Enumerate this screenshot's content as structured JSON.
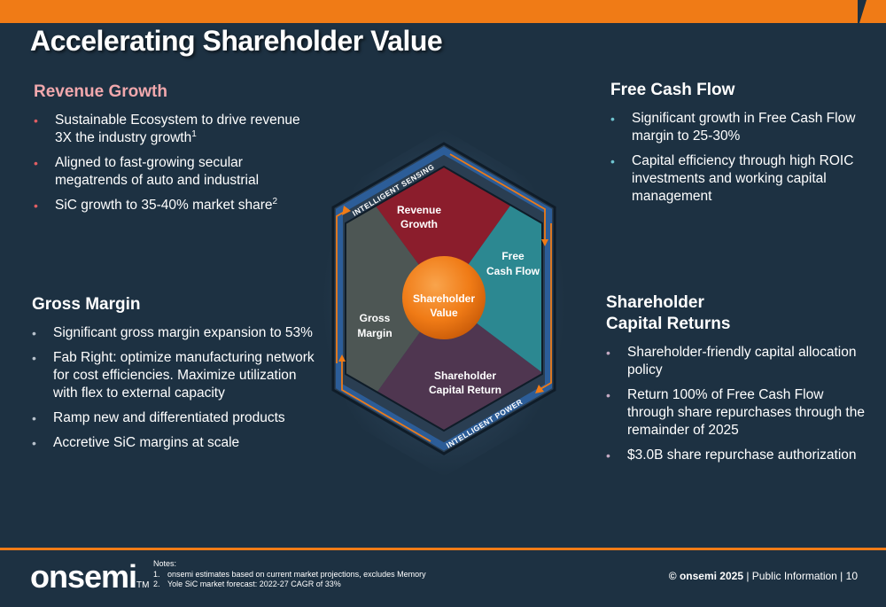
{
  "colors": {
    "background": "#1d3142",
    "accent_orange": "#f07b16",
    "revenue_red": "#8b1d2c",
    "free_cash_teal": "#2c8891",
    "gross_margin_gray": "#4d5654",
    "shareholder_purple": "#4f3650",
    "border_blue": "#2c5d98"
  },
  "title": "Accelerating Shareholder Value",
  "revenue_growth": {
    "heading": "Revenue Growth",
    "bullets": [
      {
        "text": "Sustainable Ecosystem to drive revenue 3X the industry growth",
        "sup": "1"
      },
      {
        "text": "Aligned to fast-growing secular megatrends of auto and industrial",
        "sup": ""
      },
      {
        "text": "SiC growth to 35-40% market share",
        "sup": "2"
      }
    ]
  },
  "gross_margin": {
    "heading": "Gross Margin",
    "bullets": [
      "Significant gross margin expansion to 53%",
      "Fab Right: optimize manufacturing network for cost efficiencies. Maximize utilization with flex to external capacity",
      "Ramp new and differentiated products",
      "Accretive SiC margins at scale"
    ]
  },
  "free_cash_flow": {
    "heading": "Free Cash Flow",
    "bullets": [
      "Significant growth in Free Cash Flow margin to 25-30%",
      "Capital efficiency through high ROIC investments and working capital management"
    ]
  },
  "shareholder_capital_returns": {
    "heading_line1": "Shareholder",
    "heading_line2": "Capital Returns",
    "bullets": [
      "Shareholder-friendly capital allocation policy",
      "Return 100% of Free Cash Flow through share repurchases through the remainder of 2025",
      "$3.0B share repurchase authorization"
    ]
  },
  "diagram": {
    "top_arc_label": "INTELLIGENT SENSING",
    "bottom_arc_label": "INTELLIGENT POWER",
    "center_line1": "Shareholder",
    "center_line2": "Value",
    "revenue_line1": "Revenue",
    "revenue_line2": "Growth",
    "fcf_line1": "Free",
    "fcf_line2": "Cash Flow",
    "gross_line1": "Gross",
    "gross_line2": "Margin",
    "scr_line1": "Shareholder",
    "scr_line2": "Capital Return"
  },
  "footer": {
    "logo": "onsemi",
    "logo_tm": "TM",
    "notes_label": "Notes:",
    "notes": [
      {
        "num": "1.",
        "text": "onsemi estimates based on current market projections, excludes Memory"
      },
      {
        "num": "2.",
        "text": "Yole SiC market forecast: 2022-27 CAGR of 33%"
      }
    ],
    "copyright": "© onsemi 2025",
    "classification": "| Public Information |",
    "page": "10"
  }
}
